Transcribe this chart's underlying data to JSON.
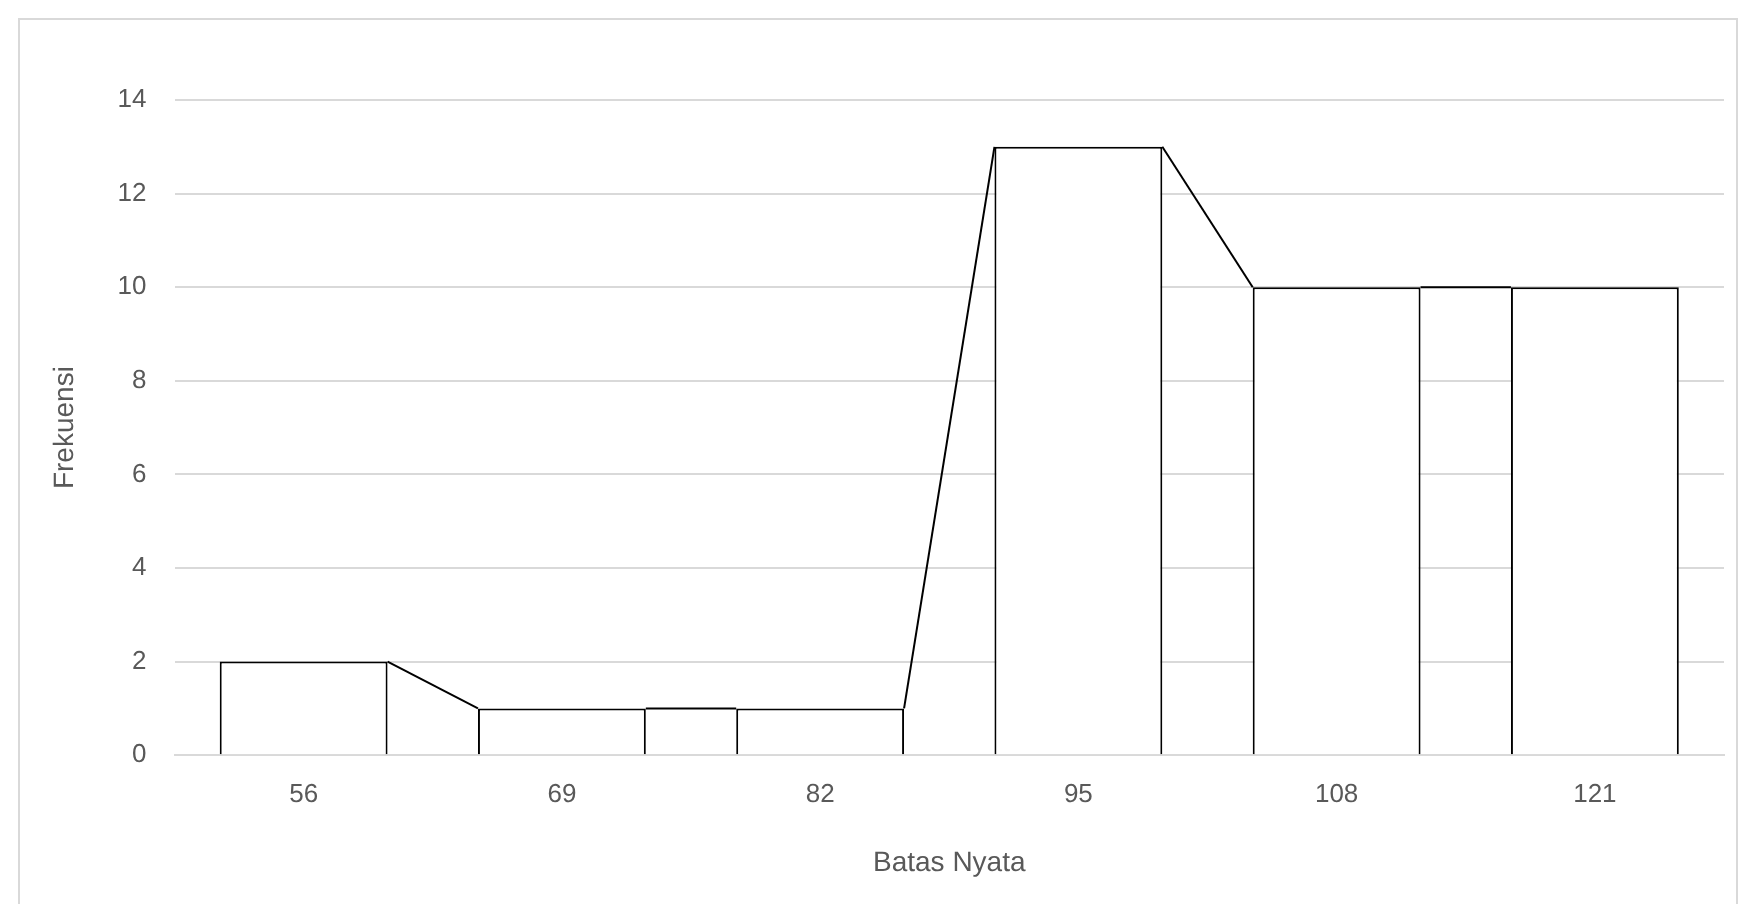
{
  "chart_data": {
    "type": "bar",
    "xlabel": "Batas Nyata",
    "ylabel": "Frekuensi",
    "categories": [
      "56",
      "69",
      "82",
      "95",
      "108",
      "121"
    ],
    "values": [
      2,
      1,
      1,
      13,
      10,
      10
    ],
    "color": "#ffffff",
    "ylim": [
      0,
      14
    ],
    "yticks": [
      0,
      2,
      4,
      6,
      8,
      10,
      12,
      14
    ],
    "grid": "y",
    "legend": false
  }
}
